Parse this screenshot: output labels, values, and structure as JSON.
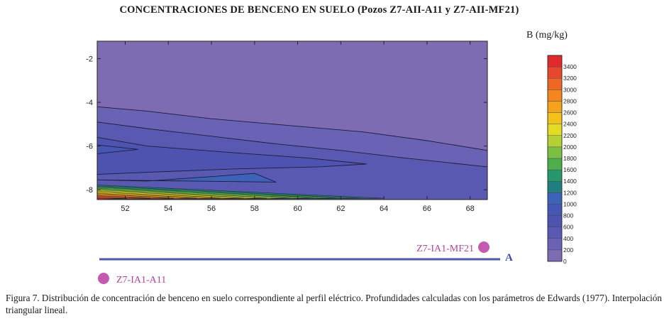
{
  "chart_data": {
    "type": "heatmap",
    "title": "CONCENTRACIONES DE BENCENO EN SUELO (Pozos Z7-AII-A11 y Z7-AII-MF21)",
    "xlabel": "",
    "ylabel": "",
    "x_ticks": [
      "52",
      "54",
      "56",
      "58",
      "60",
      "62",
      "64",
      "66",
      "68"
    ],
    "y_ticks": [
      "-2",
      "-4",
      "-6",
      "-8"
    ],
    "xlim": [
      50.7,
      68.8
    ],
    "ylim": [
      -8.45,
      -1.2
    ],
    "colorbar": {
      "label": "B (mg/kg)",
      "levels": [
        0,
        200,
        400,
        600,
        800,
        1000,
        1200,
        1400,
        1600,
        1800,
        2000,
        2200,
        2400,
        2600,
        2800,
        3000,
        3200,
        3400
      ],
      "tick_labels": [
        "0",
        "200",
        "400",
        "600",
        "800",
        "1000",
        "1200",
        "1400",
        "1600",
        "1800",
        "2000",
        "2200",
        "2400",
        "2600",
        "2800",
        "3000",
        "3200",
        "3400"
      ],
      "colors": [
        "#7d6cb1",
        "#6a62b4",
        "#5a59b2",
        "#4d53af",
        "#4657b3",
        "#3e62b8",
        "#1f7f80",
        "#25976a",
        "#4eae4c",
        "#7cc043",
        "#b5d034",
        "#e2dc25",
        "#f2c21b",
        "#f4a31a",
        "#f3861f",
        "#ee6725",
        "#e7472c",
        "#e12a2e"
      ]
    },
    "contour_bands": [
      {
        "level": 200,
        "xy": [
          [
            50.7,
            -4.2
          ],
          [
            53,
            -4.4
          ],
          [
            56,
            -4.75
          ],
          [
            59.5,
            -5.05
          ],
          [
            63,
            -5.35
          ],
          [
            66,
            -5.75
          ],
          [
            68.8,
            -6.2
          ]
        ]
      },
      {
        "level": 400,
        "xy": [
          [
            50.7,
            -4.9
          ],
          [
            53,
            -5.2
          ],
          [
            56,
            -5.55
          ],
          [
            59,
            -5.9
          ],
          [
            62,
            -6.2
          ],
          [
            65,
            -6.55
          ],
          [
            68.8,
            -6.95
          ]
        ]
      },
      {
        "level": 600,
        "xy": [
          [
            50.7,
            -5.6
          ],
          [
            53,
            -6.0
          ],
          [
            57,
            -6.3
          ],
          [
            60.5,
            -6.55
          ],
          [
            63.2,
            -6.82
          ],
          [
            61,
            -6.95
          ],
          [
            57,
            -7.05
          ],
          [
            53,
            -7.2
          ],
          [
            50.7,
            -7.3
          ]
        ]
      },
      {
        "level": 800,
        "xy": [
          [
            50.7,
            -5.95
          ],
          [
            52.6,
            -6.15
          ],
          [
            50.7,
            -6.35
          ]
        ]
      },
      {
        "level": 1000,
        "xy": [
          [
            50.7,
            -7.55
          ],
          [
            55,
            -7.6
          ],
          [
            59,
            -7.65
          ],
          [
            58,
            -7.25
          ],
          [
            56,
            -7.4
          ],
          [
            53,
            -7.6
          ],
          [
            50.7,
            -7.55
          ]
        ]
      }
    ],
    "wells": [
      {
        "name": "Z7-IA1-MF21"
      },
      {
        "name": "Z7-IA1-A11"
      }
    ],
    "profile_label": "A"
  },
  "legend_title": "B (mg/kg)",
  "caption": "Figura 7. Distribución de concentración de benceno en suelo correspondiente al perfil eléctrico. Profundidades calculadas con los parámetros de Edwards (1977). Interpolación triangular lineal."
}
